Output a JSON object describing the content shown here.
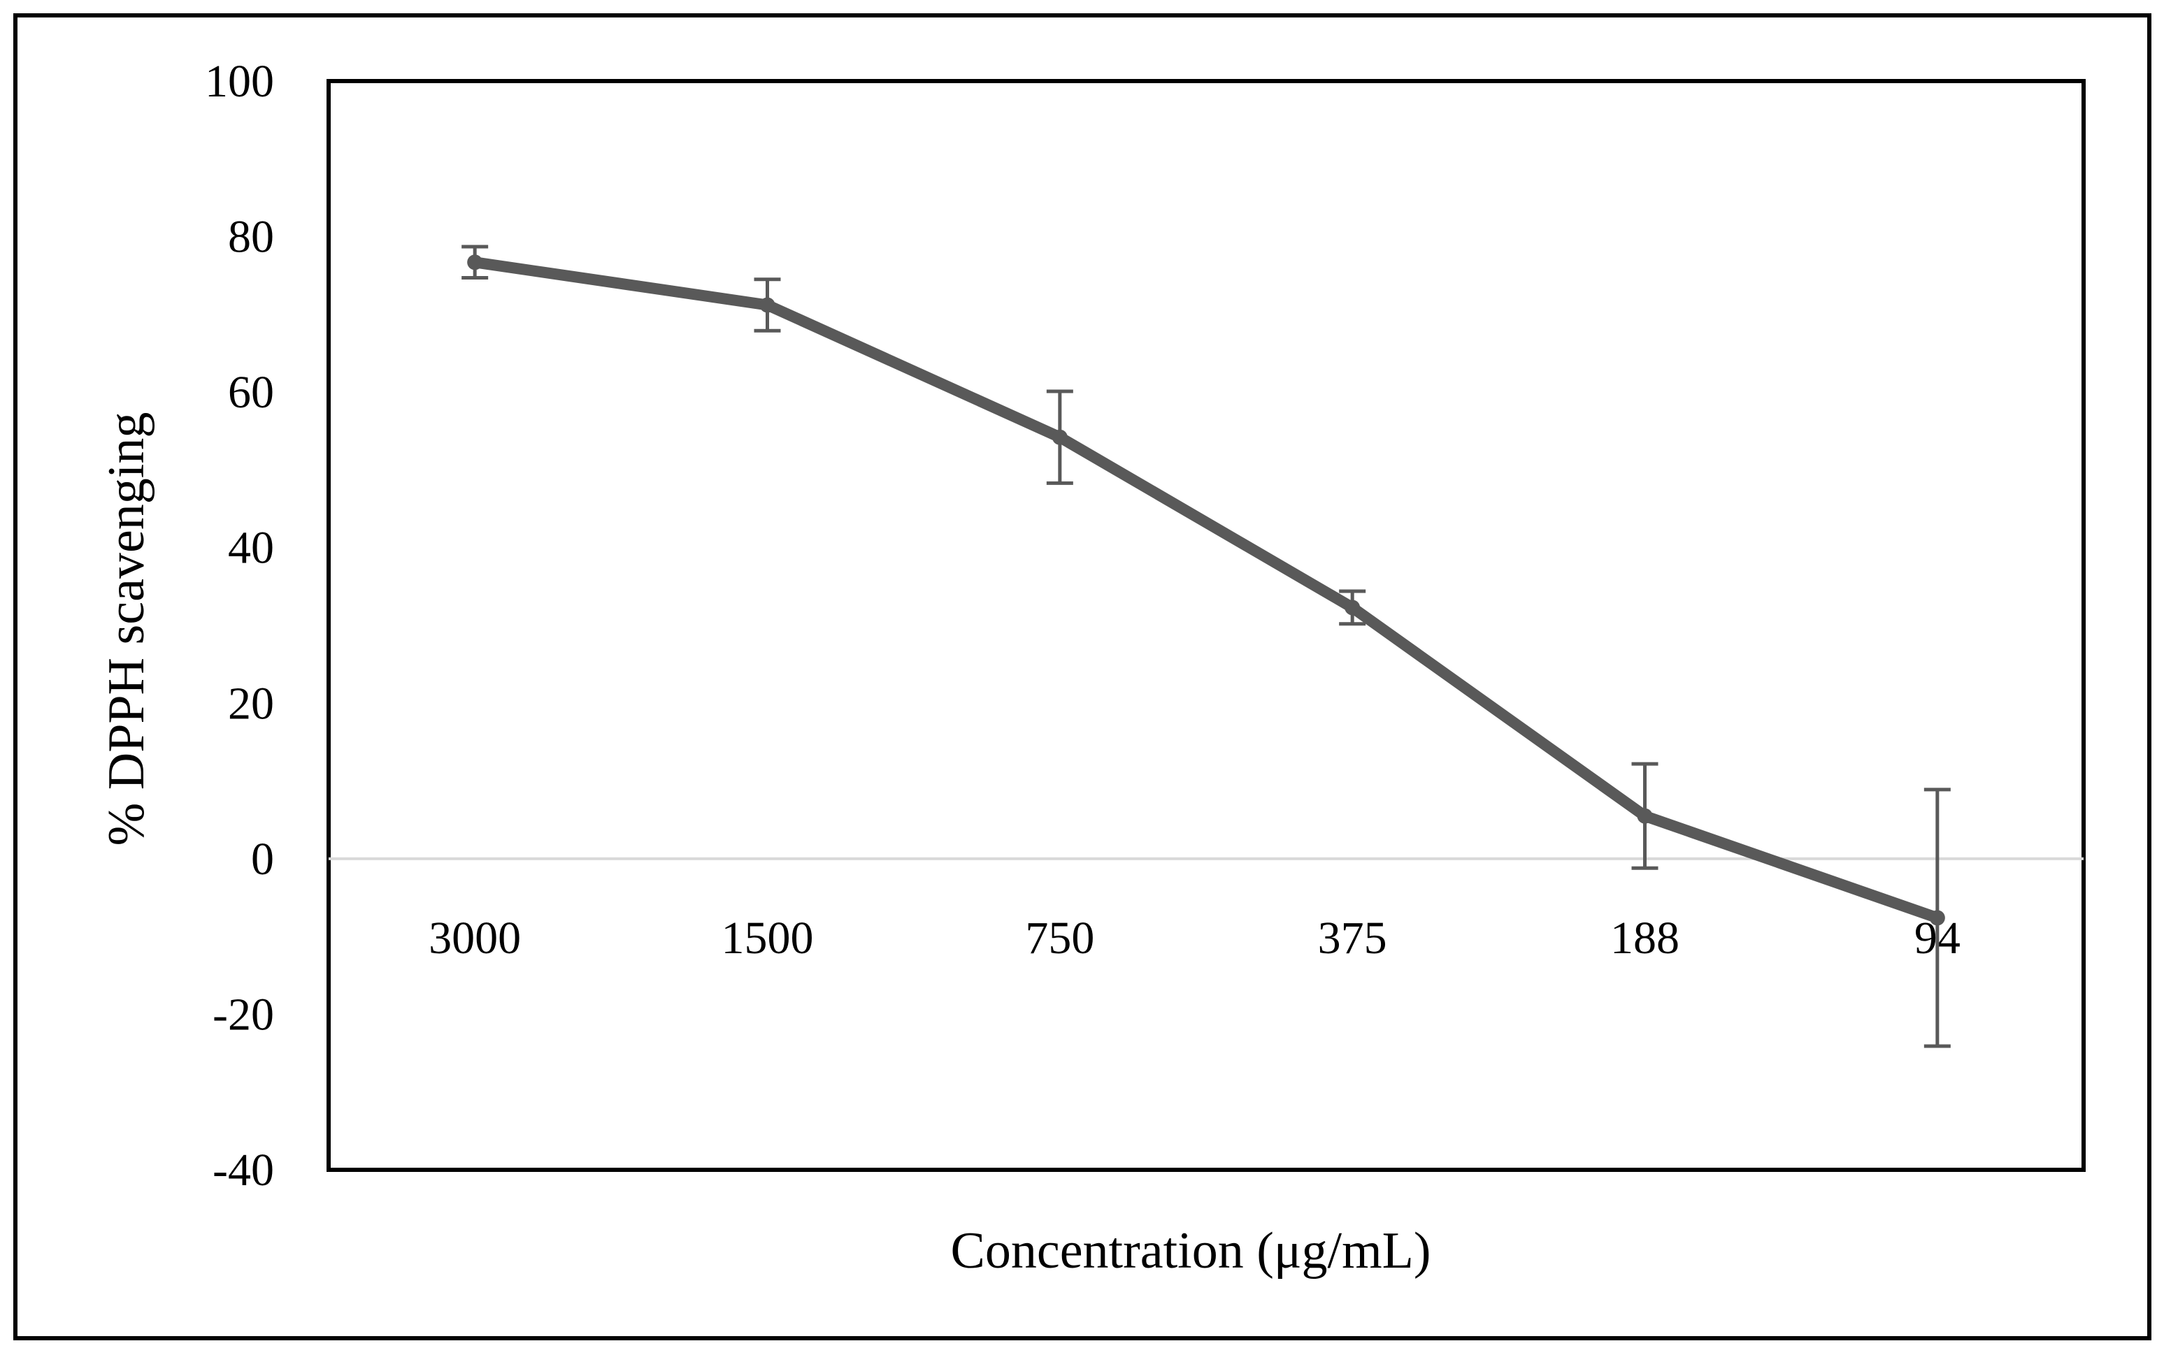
{
  "chart_data": {
    "type": "line",
    "title": "",
    "xlabel": "Concentration (μg/mL)",
    "ylabel": "% DPPH scavenging",
    "categories": [
      "3000",
      "1500",
      "750",
      "375",
      "188",
      "94"
    ],
    "series": [
      {
        "name": "% DPPH scavenging",
        "values": [
          76.7,
          71.2,
          54.2,
          32.3,
          5.5,
          -7.6
        ],
        "error": [
          2.0,
          3.3,
          5.9,
          2.1,
          6.7,
          16.5
        ],
        "color": "#595959"
      }
    ],
    "yticks": [
      100,
      80,
      60,
      40,
      20,
      0,
      -20,
      -40
    ],
    "ylim": [
      -40,
      100
    ],
    "zero_line_color": "#d9d9d9",
    "grid": false,
    "legend": "none"
  }
}
